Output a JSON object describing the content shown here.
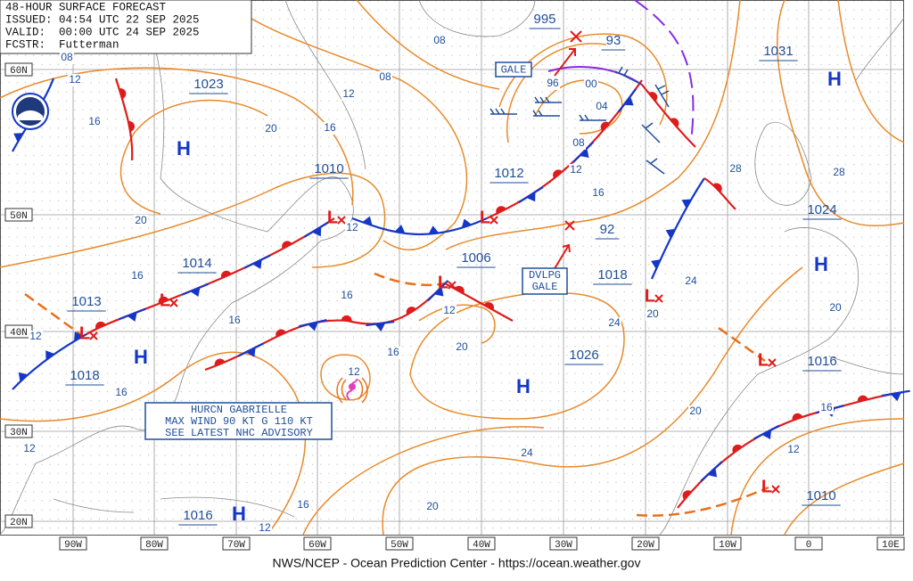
{
  "header": {
    "lines": [
      "48-HOUR SURFACE FORECAST",
      "ISSUED: 04:54 UTC 22 SEP 2025",
      "VALID:  00:00 UTC 24 SEP 2025",
      "FCSTR:  Futterman"
    ]
  },
  "latitude_labels": [
    "60N",
    "50N",
    "40N",
    "30N",
    "20N"
  ],
  "longitude_labels": [
    "90W",
    "80W",
    "70W",
    "60W",
    "50W",
    "40W",
    "30W",
    "20W",
    "10W",
    "0",
    "10E"
  ],
  "pressure_centers": [
    "995",
    "93",
    "1031",
    "1023",
    "1010",
    "1012",
    "1024",
    "1014",
    "1006",
    "92",
    "1013",
    "1018",
    "1018",
    "1026",
    "1016",
    "1016",
    "1010"
  ],
  "highs": [
    "H",
    "H",
    "H",
    "H",
    "H",
    "H"
  ],
  "lows": [
    "L",
    "L",
    "L",
    "L",
    "L",
    "L",
    "L",
    "L"
  ],
  "isobar_labels": [
    "08",
    "12",
    "16",
    "20",
    "08",
    "12",
    "16",
    "08",
    "20",
    "12",
    "16",
    "16",
    "16",
    "12",
    "20",
    "16",
    "12",
    "16",
    "12",
    "12",
    "12",
    "16",
    "20",
    "24",
    "24",
    "20",
    "24",
    "20",
    "16",
    "12",
    "20",
    "28",
    "28",
    "16",
    "12",
    "08",
    "04",
    "00",
    "96"
  ],
  "gale_box": "GALE",
  "dvlpg_gale_box": [
    "DVLPG",
    "GALE"
  ],
  "hurricane_box": [
    "HURCN GABRIELLE",
    "MAX WIND 90 KT G 110 KT",
    "SEE LATEST NHC ADVISORY"
  ],
  "footer": "NWS/NCEP - Ocean Prediction Center - https://ocean.weather.gov"
}
